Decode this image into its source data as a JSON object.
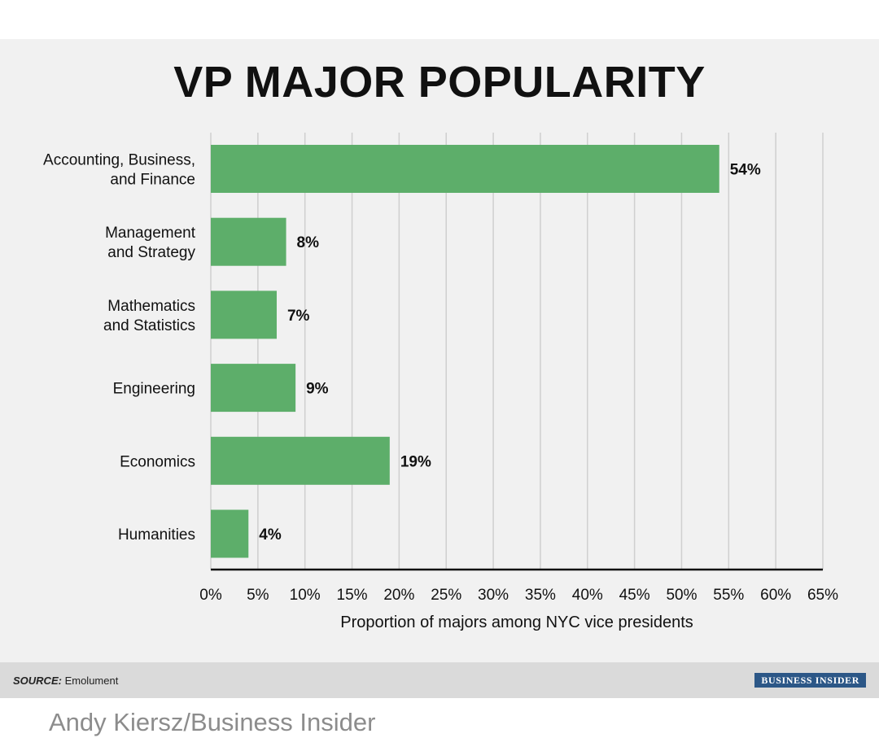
{
  "chart_data": {
    "type": "bar",
    "orientation": "horizontal",
    "title": "VP MAJOR POPULARITY",
    "xlabel": "Proportion of majors among NYC vice presidents",
    "ylabel": "",
    "categories": [
      [
        "Accounting, Business,",
        "and Finance"
      ],
      [
        "Management",
        "and Strategy"
      ],
      [
        "Mathematics",
        "and Statistics"
      ],
      [
        "Engineering"
      ],
      [
        "Economics"
      ],
      [
        "Humanities"
      ]
    ],
    "values": [
      54,
      8,
      7,
      9,
      19,
      4
    ],
    "data_labels": [
      "54%",
      "8%",
      "7%",
      "9%",
      "19%",
      "4%"
    ],
    "xlim": [
      0,
      65
    ],
    "xticks": [
      0,
      5,
      10,
      15,
      20,
      25,
      30,
      35,
      40,
      45,
      50,
      55,
      60,
      65
    ],
    "xtick_labels": [
      "0%",
      "5%",
      "10%",
      "15%",
      "20%",
      "25%",
      "30%",
      "35%",
      "40%",
      "45%",
      "50%",
      "55%",
      "60%",
      "65%"
    ],
    "grid": true,
    "bar_color": "#5dae6a"
  },
  "source": {
    "label": "SOURCE:",
    "value": "Emolument"
  },
  "brand": "BUSINESS INSIDER",
  "credit": "Andy Kiersz/Business Insider"
}
